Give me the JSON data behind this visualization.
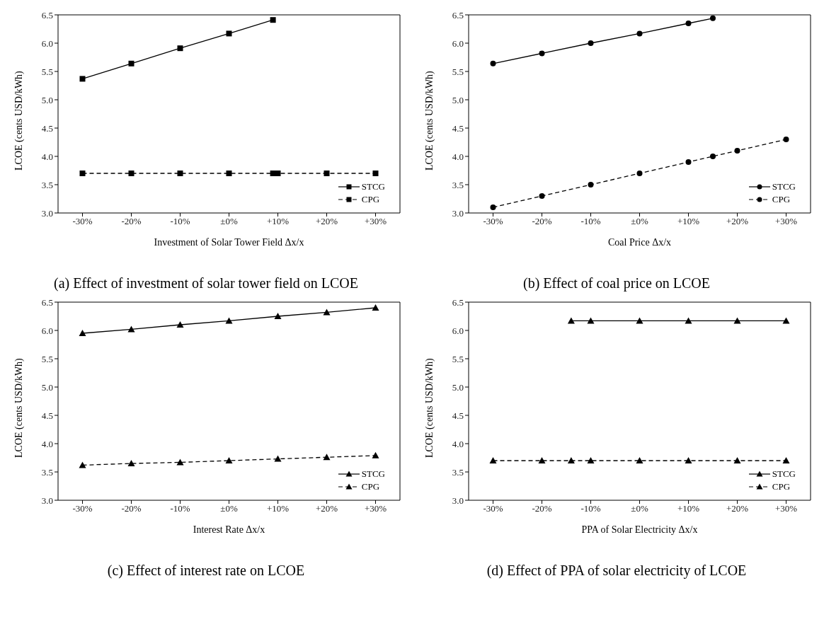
{
  "chart_data": [
    {
      "type": "line",
      "title": "(a) Effect of investment of solar tower field on LCOE",
      "xlabel": "Investment of Solar Tower Field Δx/x",
      "ylabel": "LCOE (cents USD/kWh)",
      "xlim": [
        -35,
        35
      ],
      "xticks": [
        {
          "value": -30,
          "label": "-30%"
        },
        {
          "value": -20,
          "label": "-20%"
        },
        {
          "value": -10,
          "label": "-10%"
        },
        {
          "value": 0,
          "label": "±0%"
        },
        {
          "value": 10,
          "label": "+10%"
        },
        {
          "value": 20,
          "label": "+20%"
        },
        {
          "value": 30,
          "label": "+30%"
        }
      ],
      "ylim": [
        3,
        6.5
      ],
      "yticks": [
        {
          "value": 3,
          "label": "3.0"
        },
        {
          "value": 3.5,
          "label": "3.5"
        },
        {
          "value": 4,
          "label": "4.0"
        },
        {
          "value": 4.5,
          "label": "4.5"
        },
        {
          "value": 5,
          "label": "5.0"
        },
        {
          "value": 5.5,
          "label": "5.5"
        },
        {
          "value": 6,
          "label": "6.0"
        },
        {
          "value": 6.5,
          "label": "6.5"
        }
      ],
      "grid": false,
      "legend": "bottom right",
      "marker": "square",
      "series": [
        {
          "name": "STCG",
          "color": "#000000",
          "line_style": "solid",
          "x": [
            -30,
            -20,
            -10,
            0,
            9
          ],
          "values": [
            5.37,
            5.64,
            5.91,
            6.17,
            6.41
          ]
        },
        {
          "name": "CPG",
          "color": "#000000",
          "line_style": "dashed",
          "x": [
            -30,
            -20,
            -10,
            0,
            9,
            10,
            20,
            30
          ],
          "values": [
            3.7,
            3.7,
            3.7,
            3.7,
            3.7,
            3.7,
            3.7,
            3.7
          ]
        }
      ]
    },
    {
      "type": "line",
      "title": "(b) Effect of coal price on LCOE",
      "xlabel": "Coal Price Δx/x",
      "ylabel": "LCOE (cents USD/kWh)",
      "xlim": [
        -35,
        35
      ],
      "xticks": [
        {
          "value": -30,
          "label": "-30%"
        },
        {
          "value": -20,
          "label": "-20%"
        },
        {
          "value": -10,
          "label": "-10%"
        },
        {
          "value": 0,
          "label": "±0%"
        },
        {
          "value": 10,
          "label": "+10%"
        },
        {
          "value": 20,
          "label": "+20%"
        },
        {
          "value": 30,
          "label": "+30%"
        }
      ],
      "ylim": [
        3,
        6.5
      ],
      "yticks": [
        {
          "value": 3,
          "label": "3.0"
        },
        {
          "value": 3.5,
          "label": "3.5"
        },
        {
          "value": 4,
          "label": "4.0"
        },
        {
          "value": 4.5,
          "label": "4.5"
        },
        {
          "value": 5,
          "label": "5.0"
        },
        {
          "value": 5.5,
          "label": "5.5"
        },
        {
          "value": 6,
          "label": "6.0"
        },
        {
          "value": 6.5,
          "label": "6.5"
        }
      ],
      "grid": false,
      "legend": "bottom right",
      "marker": "circle",
      "series": [
        {
          "name": "STCG",
          "color": "#000000",
          "line_style": "solid",
          "x": [
            -30,
            -20,
            -10,
            0,
            10,
            15
          ],
          "values": [
            5.64,
            5.82,
            6.0,
            6.17,
            6.35,
            6.44
          ]
        },
        {
          "name": "CPG",
          "color": "#000000",
          "line_style": "dashed",
          "x": [
            -30,
            -20,
            -10,
            0,
            10,
            15,
            20,
            30
          ],
          "values": [
            3.1,
            3.3,
            3.5,
            3.7,
            3.9,
            4.0,
            4.1,
            4.3
          ]
        }
      ]
    },
    {
      "type": "line",
      "title": "(c) Effect of interest rate on LCOE",
      "xlabel": "Interest Rate Δx/x",
      "ylabel": "LCOE (cents USD/kWh)",
      "xlim": [
        -35,
        35
      ],
      "xticks": [
        {
          "value": -30,
          "label": "-30%"
        },
        {
          "value": -20,
          "label": "-20%"
        },
        {
          "value": -10,
          "label": "-10%"
        },
        {
          "value": 0,
          "label": "±0%"
        },
        {
          "value": 10,
          "label": "+10%"
        },
        {
          "value": 20,
          "label": "+20%"
        },
        {
          "value": 30,
          "label": "+30%"
        }
      ],
      "ylim": [
        3,
        6.5
      ],
      "yticks": [
        {
          "value": 3,
          "label": "3.0"
        },
        {
          "value": 3.5,
          "label": "3.5"
        },
        {
          "value": 4,
          "label": "4.0"
        },
        {
          "value": 4.5,
          "label": "4.5"
        },
        {
          "value": 5,
          "label": "5.0"
        },
        {
          "value": 5.5,
          "label": "5.5"
        },
        {
          "value": 6,
          "label": "6.0"
        },
        {
          "value": 6.5,
          "label": "6.5"
        }
      ],
      "grid": false,
      "legend": "bottom right",
      "marker": "triangle",
      "series": [
        {
          "name": "STCG",
          "color": "#000000",
          "line_style": "solid",
          "x": [
            -30,
            -20,
            -10,
            0,
            10,
            20,
            30
          ],
          "values": [
            5.95,
            6.02,
            6.1,
            6.17,
            6.25,
            6.32,
            6.4
          ]
        },
        {
          "name": "CPG",
          "color": "#000000",
          "line_style": "dashed",
          "x": [
            -30,
            -20,
            -10,
            0,
            10,
            20,
            30
          ],
          "values": [
            3.62,
            3.65,
            3.67,
            3.7,
            3.73,
            3.76,
            3.79
          ]
        }
      ]
    },
    {
      "type": "line",
      "title": "(d) Effect of PPA of solar electricity of LCOE",
      "xlabel": "PPA of Solar Electricity Δx/x",
      "ylabel": "LCOE (cents USD/kWh)",
      "xlim": [
        -35,
        35
      ],
      "xticks": [
        {
          "value": -30,
          "label": "-30%"
        },
        {
          "value": -20,
          "label": "-20%"
        },
        {
          "value": -10,
          "label": "-10%"
        },
        {
          "value": 0,
          "label": "±0%"
        },
        {
          "value": 10,
          "label": "+10%"
        },
        {
          "value": 20,
          "label": "+20%"
        },
        {
          "value": 30,
          "label": "+30%"
        }
      ],
      "ylim": [
        3,
        6.5
      ],
      "yticks": [
        {
          "value": 3,
          "label": "3.0"
        },
        {
          "value": 3.5,
          "label": "3.5"
        },
        {
          "value": 4,
          "label": "4.0"
        },
        {
          "value": 4.5,
          "label": "4.5"
        },
        {
          "value": 5,
          "label": "5.0"
        },
        {
          "value": 5.5,
          "label": "5.5"
        },
        {
          "value": 6,
          "label": "6.0"
        },
        {
          "value": 6.5,
          "label": "6.5"
        }
      ],
      "grid": false,
      "legend": "bottom right",
      "marker": "triangle",
      "series": [
        {
          "name": "STCG",
          "color": "#000000",
          "line_style": "solid",
          "x": [
            -14,
            -10,
            0,
            10,
            20,
            30
          ],
          "values": [
            6.17,
            6.17,
            6.17,
            6.17,
            6.17,
            6.17
          ]
        },
        {
          "name": "CPG",
          "color": "#000000",
          "line_style": "dashed",
          "x": [
            -30,
            -20,
            -14,
            -10,
            0,
            10,
            20,
            30
          ],
          "values": [
            3.7,
            3.7,
            3.7,
            3.7,
            3.7,
            3.7,
            3.7,
            3.7
          ]
        }
      ]
    }
  ]
}
